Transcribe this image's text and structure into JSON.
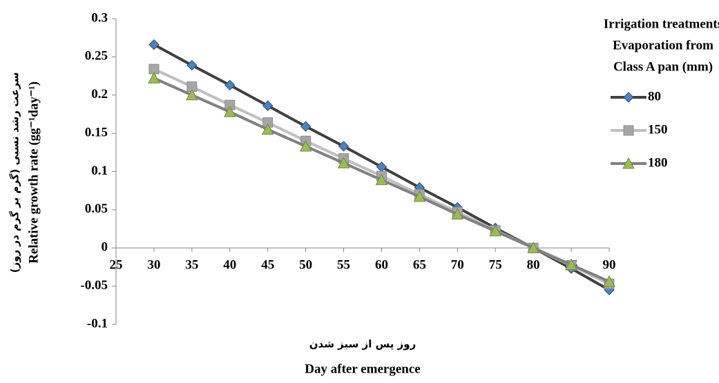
{
  "chart_data": {
    "type": "line",
    "y_label": "Relative growth rate (gg⁻¹day⁻¹)",
    "y_label_fa": "سرعت رشد نسبی (گرم بر گرم در روز)",
    "x_label": "Day after emergence",
    "x_label_fa": "روز پس از سبز شدن",
    "legend_title": [
      "Irrigation treatments",
      "Evaporation from",
      "Class A pan (mm)"
    ],
    "legend_position": "right",
    "x": [
      30,
      35,
      40,
      45,
      50,
      55,
      60,
      65,
      70,
      75,
      80,
      85,
      90
    ],
    "xlim": [
      25,
      90
    ],
    "xticks": [
      25,
      30,
      35,
      40,
      45,
      50,
      55,
      60,
      65,
      70,
      75,
      80,
      85,
      90
    ],
    "ylim": [
      -0.1,
      0.3
    ],
    "yticks": [
      -0.1,
      -0.05,
      0,
      0.05,
      0.1,
      0.15,
      0.2,
      0.25,
      0.3
    ],
    "series": [
      {
        "name": "80",
        "color": "#404040",
        "marker": "diamond",
        "marker_color": "#4f81bd",
        "values": [
          0.266,
          0.239,
          0.213,
          0.186,
          0.159,
          0.133,
          0.106,
          0.079,
          0.053,
          0.026,
          0,
          -0.027,
          -0.055
        ]
      },
      {
        "name": "150",
        "color": "#bfbfbf",
        "marker": "square",
        "marker_color": "#a6a6a6",
        "values": [
          0.234,
          0.211,
          0.187,
          0.164,
          0.14,
          0.117,
          0.094,
          0.07,
          0.047,
          0.023,
          0,
          -0.023,
          -0.047
        ]
      },
      {
        "name": "180",
        "color": "#808080",
        "marker": "triangle",
        "marker_color": "#9bbb59",
        "values": [
          0.222,
          0.2,
          0.178,
          0.155,
          0.133,
          0.111,
          0.089,
          0.067,
          0.044,
          0.022,
          0,
          -0.022,
          -0.044
        ]
      }
    ]
  }
}
